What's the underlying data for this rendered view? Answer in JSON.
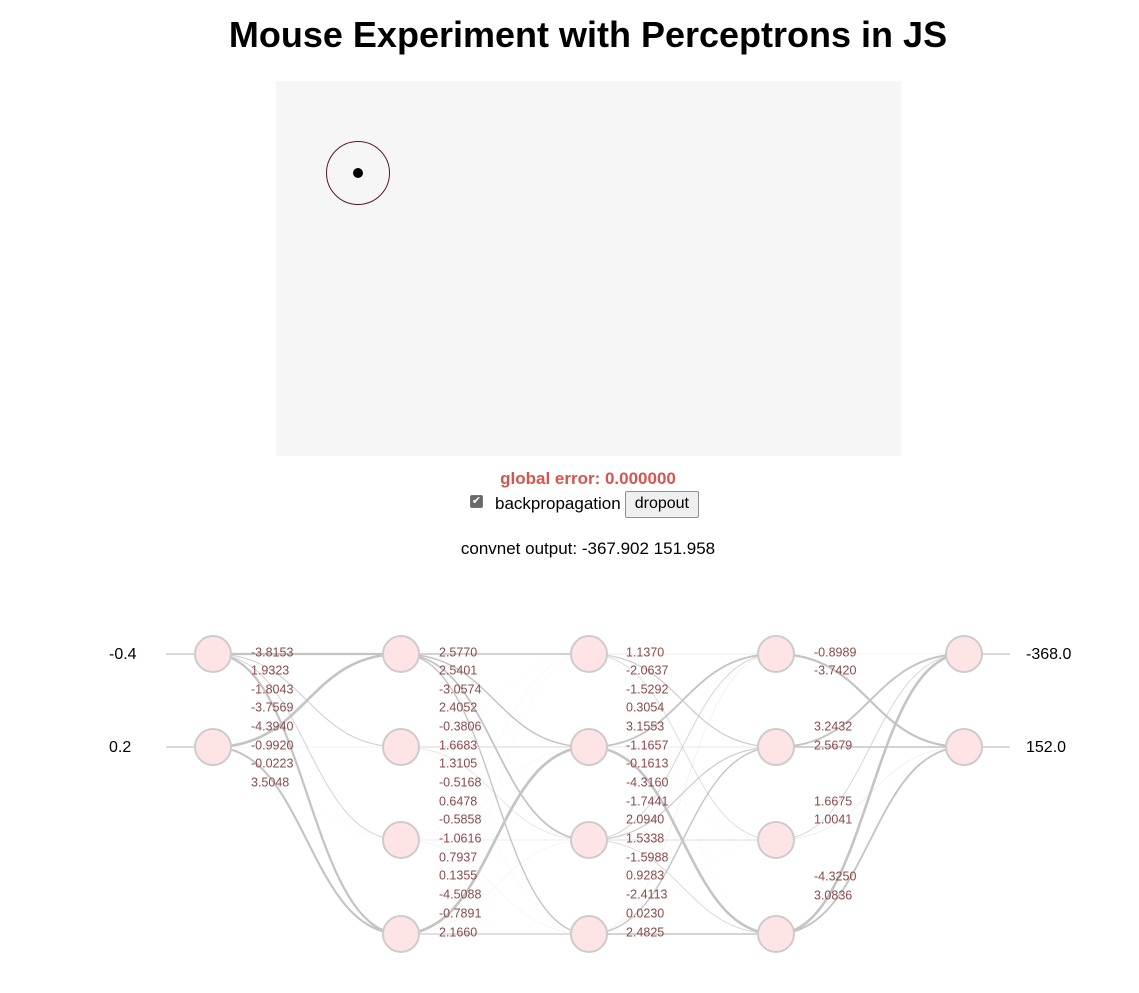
{
  "page": {
    "title": "Mouse Experiment with Perceptrons in JS"
  },
  "canvas": {
    "background": "#f6f6f6",
    "target_ring_color": "#5a1a24",
    "target_dot_color": "#000000"
  },
  "status": {
    "global_error": "global error: 0.000000",
    "error_color": "#d9534f"
  },
  "controls": {
    "backprop_checked": true,
    "backprop_label": "backpropagation",
    "dropout_label": "dropout"
  },
  "output": {
    "convnet_output": "convnet output: -367.902 151.958"
  },
  "network": {
    "node_fill": "#ffe4e6",
    "node_stroke": "#cccccc",
    "edge_color": "#c4c4c4",
    "weight_color": "#8b4a4a",
    "input_labels": [
      "-0.4",
      "0.2"
    ],
    "output_labels": [
      "-368.0",
      "152.0"
    ],
    "layers": [
      2,
      4,
      4,
      4,
      2
    ],
    "weights": [
      [
        -3.8153,
        1.9323,
        -1.8043,
        -3.7569,
        -4.394,
        -0.992,
        -0.0223,
        3.5048
      ],
      [
        2.577,
        2.5401,
        -3.0574,
        2.4052,
        -0.3806,
        1.6683,
        1.3105,
        -0.5168,
        0.6478,
        -0.5858,
        -1.0616,
        0.7937,
        0.1355,
        -4.5088,
        -0.7891,
        2.166
      ],
      [
        1.137,
        -2.0637,
        -1.5292,
        0.3054,
        3.1553,
        -1.1657,
        -0.1613,
        -4.316,
        -1.7441,
        2.094,
        1.5338,
        -1.5988,
        0.9283,
        -2.4113,
        0.023,
        2.4825
      ],
      [
        -0.8989,
        -3.742,
        3.2432,
        2.5679,
        1.6675,
        1.0041,
        -4.325,
        3.0836
      ]
    ],
    "weight_labels": [
      [
        "-3.8153",
        "1.9323",
        "-1.8043",
        "-3.7569",
        "-4.3940",
        "-0.9920",
        "-0.0223",
        "3.5048"
      ],
      [
        "2.5770",
        "2.5401",
        "-3.0574",
        "2.4052",
        "-0.3806",
        "1.6683",
        "1.3105",
        "-0.5168",
        "0.6478",
        "-0.5858",
        "-1.0616",
        "0.7937",
        "0.1355",
        "-4.5088",
        "-0.7891",
        "2.1660"
      ],
      [
        "1.1370",
        "-2.0637",
        "-1.5292",
        "0.3054",
        "3.1553",
        "-1.1657",
        "-0.1613",
        "-4.3160",
        "-1.7441",
        "2.0940",
        "1.5338",
        "-1.5988",
        "0.9283",
        "-2.4113",
        "0.0230",
        "2.4825"
      ],
      [
        "-0.8989",
        "-3.7420",
        "3.2432",
        "2.5679",
        "1.6675",
        "1.0041",
        "-4.3250",
        "3.0836"
      ]
    ]
  }
}
